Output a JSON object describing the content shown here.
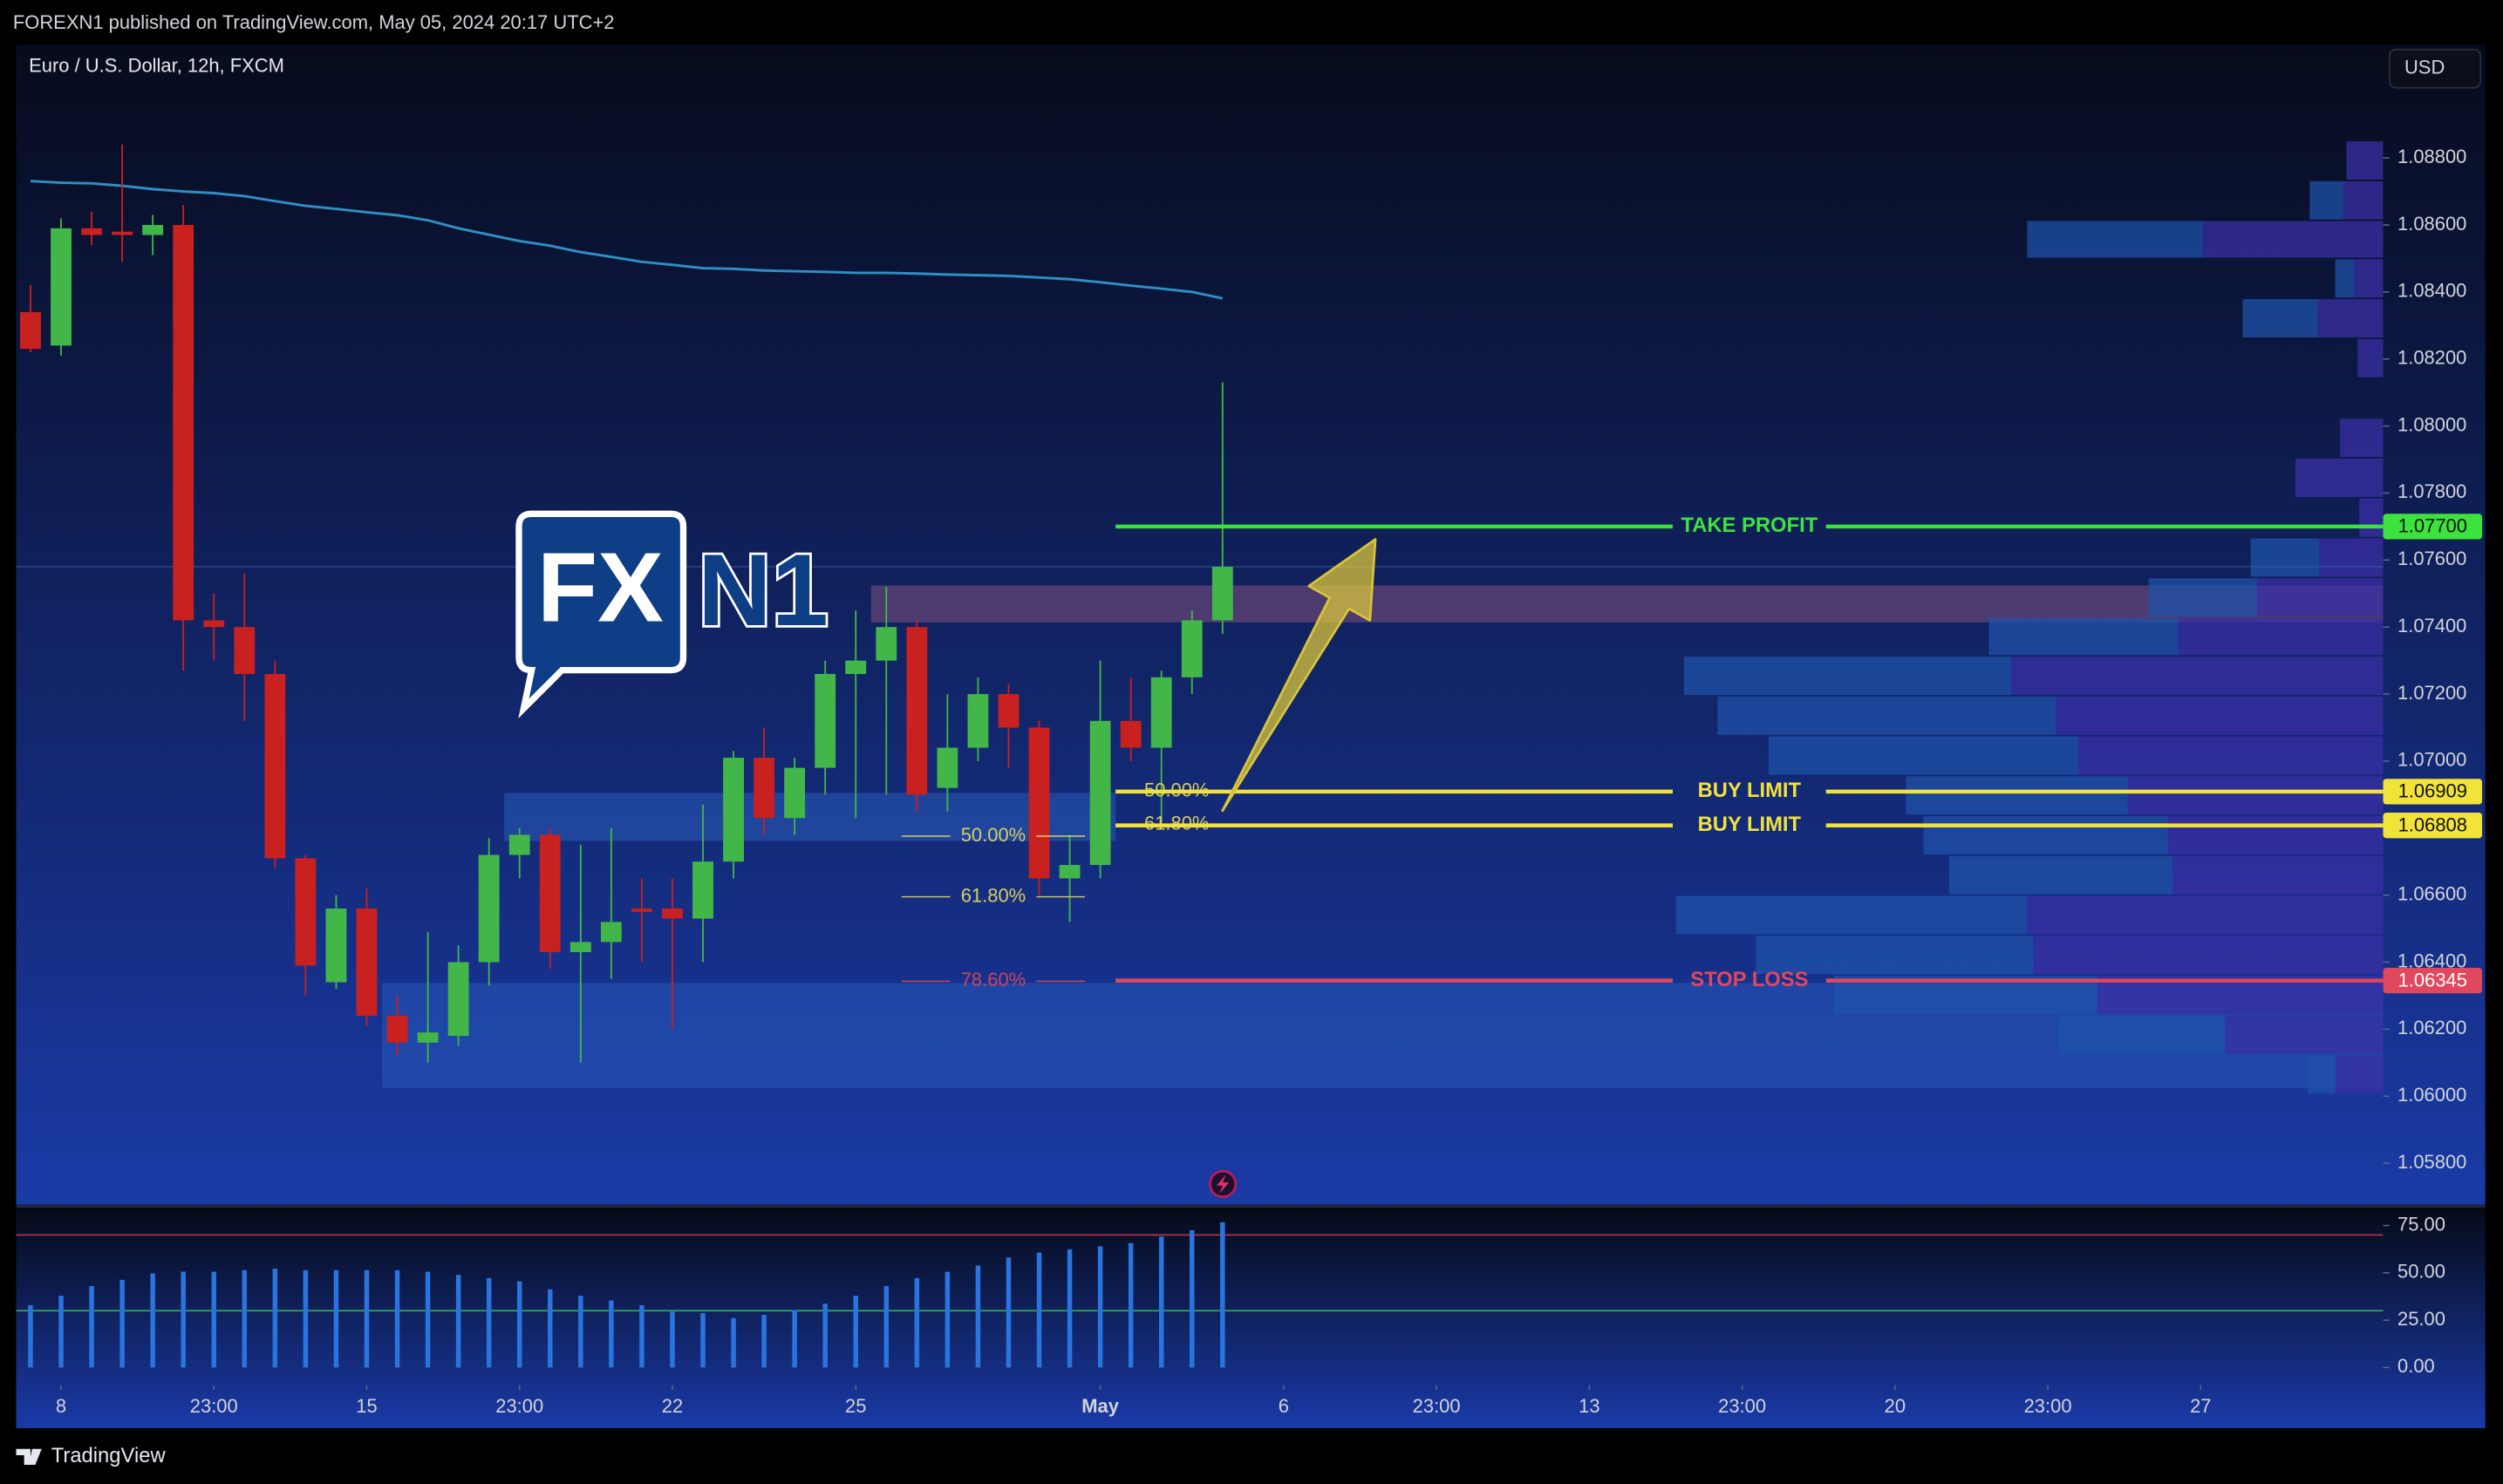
{
  "header": {
    "published": "FOREXN1 published on TradingView.com, May 05, 2024 20:17 UTC+2"
  },
  "footer": {
    "brand": "TradingView"
  },
  "logo": [
    "FX",
    "N1"
  ],
  "chart_data": {
    "type": "candlestick",
    "title": "Euro / U.S. Dollar, 12h, FXCM",
    "currency": "USD",
    "colors": {
      "up": "#43b649",
      "down": "#c8211f",
      "ma": "#2f8fc4"
    },
    "xlim": [
      -0.47,
      76.97
    ],
    "xticks": [
      {
        "value": 1,
        "label": "8"
      },
      {
        "value": 6,
        "label": "23:00"
      },
      {
        "value": 11,
        "label": "15"
      },
      {
        "value": 16,
        "label": "23:00"
      },
      {
        "value": 21,
        "label": "22"
      },
      {
        "value": 27,
        "label": "25"
      },
      {
        "value": 35,
        "label": "May"
      },
      {
        "value": 41,
        "label": "6"
      },
      {
        "value": 46,
        "label": "23:00"
      },
      {
        "value": 51,
        "label": "13"
      },
      {
        "value": 56,
        "label": "23:00"
      },
      {
        "value": 61,
        "label": "20"
      },
      {
        "value": 66,
        "label": "23:00"
      },
      {
        "value": 71,
        "label": "27"
      }
    ],
    "ylim": [
      1.05676,
      1.09138
    ],
    "yticks": [
      {
        "value": 1.058,
        "label": "1.05800"
      },
      {
        "value": 1.06,
        "label": "1.06000"
      },
      {
        "value": 1.062,
        "label": "1.06200"
      },
      {
        "value": 1.064,
        "label": "1.06400"
      },
      {
        "value": 1.066,
        "label": "1.06600"
      },
      {
        "value": 1.068,
        "label": "1.06800"
      },
      {
        "value": 1.07,
        "label": "1.07000"
      },
      {
        "value": 1.072,
        "label": "1.07200"
      },
      {
        "value": 1.074,
        "label": "1.07400"
      },
      {
        "value": 1.076,
        "label": "1.07600"
      },
      {
        "value": 1.078,
        "label": "1.07800"
      },
      {
        "value": 1.08,
        "label": "1.08000"
      },
      {
        "value": 1.082,
        "label": "1.08200"
      },
      {
        "value": 1.084,
        "label": "1.08400"
      },
      {
        "value": 1.086,
        "label": "1.08600"
      },
      {
        "value": 1.088,
        "label": "1.08800"
      }
    ],
    "ohlc": {
      "open": [
        1.0834,
        1.0824,
        1.0859,
        1.0858,
        1.0857,
        1.086,
        1.0742,
        1.074,
        1.0726,
        1.0671,
        1.0634,
        1.0656,
        1.0624,
        1.0616,
        1.0618,
        1.064,
        1.0672,
        1.0678,
        1.0643,
        1.0646,
        1.0656,
        1.0656,
        1.0653,
        1.067,
        1.0701,
        1.0683,
        1.0698,
        1.0726,
        1.073,
        1.074,
        1.0692,
        1.0704,
        1.072,
        1.071,
        1.0665,
        1.0669,
        1.0712,
        1.0704,
        1.0725,
        1.0742
      ],
      "high": [
        1.0842,
        1.0862,
        1.0864,
        1.0884,
        1.0863,
        1.0866,
        1.075,
        1.0756,
        1.073,
        1.0672,
        1.066,
        1.0662,
        1.063,
        1.0649,
        1.0645,
        1.0677,
        1.068,
        1.068,
        1.0675,
        1.068,
        1.0665,
        1.0665,
        1.0687,
        1.0703,
        1.071,
        1.0701,
        1.073,
        1.0745,
        1.0752,
        1.0742,
        1.072,
        1.0725,
        1.0723,
        1.0712,
        1.0678,
        1.073,
        1.0725,
        1.0727,
        1.0745,
        1.0813
      ],
      "low": [
        1.0822,
        1.0821,
        1.0854,
        1.0849,
        1.0851,
        1.0727,
        1.073,
        1.0712,
        1.0668,
        1.063,
        1.0632,
        1.0621,
        1.0612,
        1.061,
        1.0615,
        1.0633,
        1.0665,
        1.0638,
        1.061,
        1.0635,
        1.064,
        1.062,
        1.064,
        1.0665,
        1.0678,
        1.0678,
        1.069,
        1.0683,
        1.069,
        1.0685,
        1.0685,
        1.07,
        1.0698,
        1.066,
        1.0652,
        1.0665,
        1.07,
        1.068,
        1.072,
        1.0738
      ],
      "close": [
        1.0823,
        1.0859,
        1.0857,
        1.0857,
        1.086,
        1.0742,
        1.074,
        1.0726,
        1.0671,
        1.0639,
        1.0656,
        1.0624,
        1.0616,
        1.0619,
        1.064,
        1.0672,
        1.0678,
        1.0643,
        1.0646,
        1.0652,
        1.0655,
        1.0653,
        1.067,
        1.0701,
        1.0683,
        1.0698,
        1.0726,
        1.073,
        1.074,
        1.069,
        1.0704,
        1.072,
        1.071,
        1.0665,
        1.0669,
        1.0712,
        1.0704,
        1.0725,
        1.0742,
        1.0758
      ]
    },
    "ma": [
      1.08731,
      1.08726,
      1.08724,
      1.08717,
      1.08707,
      1.087,
      1.08695,
      1.08686,
      1.08671,
      1.08657,
      1.08648,
      1.08638,
      1.08629,
      1.08614,
      1.0859,
      1.08571,
      1.08552,
      1.08538,
      1.08519,
      1.08505,
      1.0849,
      1.08481,
      1.08471,
      1.08469,
      1.08464,
      1.08462,
      1.0846,
      1.08457,
      1.08457,
      1.08455,
      1.08452,
      1.0845,
      1.08448,
      1.08443,
      1.08438,
      1.08429,
      1.08419,
      1.0841,
      1.084,
      1.08381
    ],
    "zones": [
      {
        "from": 28,
        "low": 1.07414,
        "high": 1.07524,
        "color": "#9a5a86"
      },
      {
        "from": 16,
        "to": 35,
        "low": 1.06762,
        "high": 1.06905,
        "color": "#2d66c8"
      },
      {
        "from": 12,
        "low": 1.06024,
        "high": 1.06338,
        "color": "#2a5fc4"
      }
    ],
    "volume_profile": {
      "vlim": [
        0,
        1483
      ],
      "colors": [
        "#1f52a8",
        "#3a2fa6"
      ],
      "rows": [
        {
          "low": 1.08733,
          "high": 1.08852,
          "a": 0,
          "b": 23
        },
        {
          "low": 1.08614,
          "high": 1.08733,
          "a": 21,
          "b": 25
        },
        {
          "low": 1.085,
          "high": 1.08614,
          "a": 110,
          "b": 113
        },
        {
          "low": 1.08381,
          "high": 1.085,
          "a": 12,
          "b": 18
        },
        {
          "low": 1.08262,
          "high": 1.08381,
          "a": 47,
          "b": 41
        },
        {
          "low": 1.08143,
          "high": 1.08262,
          "a": 0,
          "b": 16
        },
        {
          "low": 1.07905,
          "high": 1.08024,
          "a": 0,
          "b": 27
        },
        {
          "low": 1.07786,
          "high": 1.07905,
          "a": 0,
          "b": 55
        },
        {
          "low": 1.07667,
          "high": 1.07786,
          "a": 0,
          "b": 15
        },
        {
          "low": 1.07548,
          "high": 1.07667,
          "a": 43,
          "b": 40
        },
        {
          "low": 1.07429,
          "high": 1.07548,
          "a": 68,
          "b": 79
        },
        {
          "low": 1.07314,
          "high": 1.07429,
          "a": 119,
          "b": 128
        },
        {
          "low": 1.07195,
          "high": 1.07314,
          "a": 205,
          "b": 233
        },
        {
          "low": 1.07076,
          "high": 1.07195,
          "a": 212,
          "b": 205
        },
        {
          "low": 1.06957,
          "high": 1.07076,
          "a": 194,
          "b": 191
        },
        {
          "low": 1.06838,
          "high": 1.06957,
          "a": 139,
          "b": 160
        },
        {
          "low": 1.06719,
          "high": 1.06838,
          "a": 153,
          "b": 135
        },
        {
          "low": 1.066,
          "high": 1.06719,
          "a": 140,
          "b": 132
        },
        {
          "low": 1.06481,
          "high": 1.066,
          "a": 220,
          "b": 223
        },
        {
          "low": 1.06362,
          "high": 1.06481,
          "a": 174,
          "b": 219
        },
        {
          "low": 1.06243,
          "high": 1.06362,
          "a": 165,
          "b": 179
        },
        {
          "low": 1.06124,
          "high": 1.06243,
          "a": 104,
          "b": 99
        },
        {
          "low": 1.06005,
          "high": 1.06124,
          "a": 17,
          "b": 30
        }
      ]
    },
    "fib": [
      {
        "from": 29,
        "to": 34,
        "levels": [
          {
            "label": "50.00%",
            "price": 1.06776,
            "color": "#d6cf63"
          },
          {
            "label": "61.80%",
            "price": 1.06595,
            "color": "#d6cf63"
          },
          {
            "label": "78.60%",
            "price": 1.06343,
            "color": "#c9455e"
          }
        ]
      },
      {
        "from": 36,
        "to": 39,
        "levels": [
          {
            "label": "50.00%",
            "price": 1.0691,
            "color": "#d6cf63"
          },
          {
            "label": "61.80%",
            "price": 1.0681,
            "color": "#d6cf63"
          }
        ]
      }
    ],
    "levels": [
      {
        "label": "TAKE PROFIT",
        "price": 1.077,
        "price_label": "1.07700",
        "color": "#3de33d",
        "from": 36
      },
      {
        "label": "BUY LIMIT",
        "price": 1.06909,
        "price_label": "1.06909",
        "color": "#f2e33a",
        "from": 36
      },
      {
        "label": "BUY LIMIT",
        "price": 1.06808,
        "price_label": "1.06808",
        "color": "#f2e33a",
        "from": 36
      },
      {
        "label": "STOP LOSS",
        "price": 1.06345,
        "price_label": "1.06345",
        "color": "#e0485e",
        "from": 36
      }
    ],
    "arrow": {
      "from": [
        39,
        1.06852
      ],
      "to": [
        44,
        1.07662
      ],
      "color": "#d8c43a"
    },
    "indicator": {
      "color": "#2a74e0",
      "values": [
        32.9,
        37.9,
        43.0,
        46.3,
        49.7,
        50.6,
        50.6,
        51.4,
        52.2,
        51.4,
        51.4,
        51.4,
        51.4,
        50.6,
        48.9,
        47.2,
        45.5,
        41.3,
        37.9,
        35.4,
        32.9,
        29.5,
        28.7,
        26.1,
        27.8,
        30.3,
        33.7,
        37.9,
        43.0,
        47.2,
        50.6,
        53.9,
        58.1,
        60.7,
        62.4,
        64.0,
        65.7,
        69.1,
        72.5,
        76.7
      ],
      "ylim": [
        -9.27,
        84.27
      ],
      "yticks": [
        {
          "value": 0,
          "label": "0.00"
        },
        {
          "value": 25,
          "label": "25.00"
        },
        {
          "value": 50,
          "label": "50.00"
        },
        {
          "value": 75,
          "label": "75.00"
        }
      ],
      "bands": [
        {
          "value": 70,
          "color": "#b8304a"
        },
        {
          "value": 30,
          "color": "#2fa862"
        }
      ]
    }
  }
}
